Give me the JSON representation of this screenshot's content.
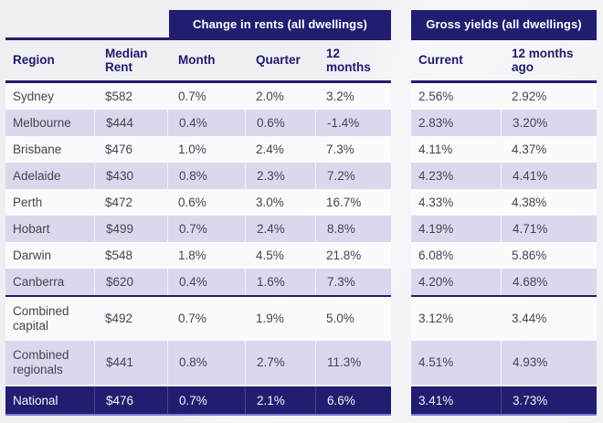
{
  "colors": {
    "navy": "#211d70",
    "lavender_row": "#ddd7ee",
    "plain_row": "#fbfbfd",
    "total_underline": "#8074d4",
    "header_text": "#1e1b6b",
    "body_text": "#47434f",
    "banner_text": "#ffffff",
    "page_background": "#f1f0f5"
  },
  "left_table": {
    "banner": "Change in rents (all dwellings)",
    "columns": [
      "Region",
      "Median Rent",
      "Month",
      "Quarter",
      "12 months"
    ]
  },
  "right_table": {
    "banner": "Gross yields (all dwellings)",
    "columns": [
      "Current",
      "12 months ago"
    ]
  },
  "chart_data": {
    "type": "table",
    "title": "Change in rents (all dwellings) and Gross yields (all dwellings)",
    "columns": [
      "Region",
      "Median Rent",
      "Month",
      "Quarter",
      "12 months",
      "Current",
      "12 months ago"
    ],
    "column_groups": [
      {
        "label": "Change in rents (all dwellings)",
        "columns": [
          "Month",
          "Quarter",
          "12 months"
        ]
      },
      {
        "label": "Gross yields (all dwellings)",
        "columns": [
          "Current",
          "12 months ago"
        ]
      }
    ],
    "rows": [
      [
        "Sydney",
        "$582",
        "0.7%",
        "2.0%",
        "3.2%",
        "2.56%",
        "2.92%"
      ],
      [
        "Melbourne",
        "$444",
        "0.4%",
        "0.6%",
        "-1.4%",
        "2.83%",
        "3.20%"
      ],
      [
        "Brisbane",
        "$476",
        "1.0%",
        "2.4%",
        "7.3%",
        "4.11%",
        "4.37%"
      ],
      [
        "Adelaide",
        "$430",
        "0.8%",
        "2.3%",
        "7.2%",
        "4.23%",
        "4.41%"
      ],
      [
        "Perth",
        "$472",
        "0.6%",
        "3.0%",
        "16.7%",
        "4.33%",
        "4.38%"
      ],
      [
        "Hobart",
        "$499",
        "0.7%",
        "2.4%",
        "8.8%",
        "4.19%",
        "4.71%"
      ],
      [
        "Darwin",
        "$548",
        "1.8%",
        "4.5%",
        "21.8%",
        "6.08%",
        "5.86%"
      ],
      [
        "Canberra",
        "$620",
        "0.4%",
        "1.6%",
        "7.3%",
        "4.20%",
        "4.68%"
      ],
      [
        "Combined capital",
        "$492",
        "0.7%",
        "1.9%",
        "5.0%",
        "3.12%",
        "3.44%"
      ],
      [
        "Combined regionals",
        "$441",
        "0.8%",
        "2.7%",
        "11.3%",
        "4.51%",
        "4.93%"
      ],
      [
        "National",
        "$476",
        "0.7%",
        "2.1%",
        "6.6%",
        "3.41%",
        "3.73%"
      ]
    ]
  }
}
